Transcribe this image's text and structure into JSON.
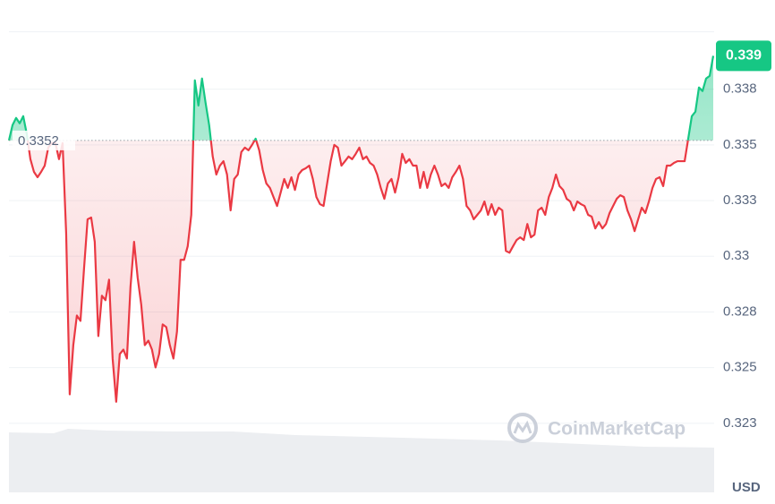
{
  "chart_data": {
    "type": "line",
    "series": [
      {
        "name": null,
        "up_color": "#16c784",
        "down_color": "#ea3943",
        "values": [
          0.3352,
          0.33589,
          0.33621,
          0.33597,
          0.33629,
          0.33548,
          0.33436,
          0.33379,
          0.33355,
          0.33379,
          0.33407,
          0.33488,
          0.33508,
          0.33508,
          0.33436,
          0.33508,
          0.33105,
          0.3238,
          0.32601,
          0.32734,
          0.3271,
          0.32944,
          0.33166,
          0.33174,
          0.33065,
          0.32642,
          0.32823,
          0.32803,
          0.32895,
          0.32541,
          0.32347,
          0.32561,
          0.32581,
          0.32541,
          0.32863,
          0.33065,
          0.32904,
          0.32783,
          0.32601,
          0.32621,
          0.32581,
          0.32501,
          0.32561,
          0.32694,
          0.32682,
          0.32601,
          0.32541,
          0.32662,
          0.32984,
          0.32984,
          0.33045,
          0.33186,
          0.3379,
          0.33677,
          0.33798,
          0.33689,
          0.33589,
          0.33448,
          0.33367,
          0.33407,
          0.33427,
          0.33367,
          0.33206,
          0.33347,
          0.33367,
          0.33468,
          0.33488,
          0.33476,
          0.335,
          0.33528,
          0.33476,
          0.33387,
          0.33327,
          0.33307,
          0.33266,
          0.33226,
          0.33286,
          0.33347,
          0.33307,
          0.33355,
          0.33298,
          0.33367,
          0.33387,
          0.33395,
          0.33407,
          0.33347,
          0.33266,
          0.33234,
          0.33226,
          0.33327,
          0.33427,
          0.335,
          0.33488,
          0.33407,
          0.33427,
          0.33448,
          0.33436,
          0.3346,
          0.33488,
          0.33436,
          0.33448,
          0.33419,
          0.33407,
          0.33367,
          0.33307,
          0.33258,
          0.33327,
          0.33347,
          0.33286,
          0.33355,
          0.3346,
          0.33419,
          0.33436,
          0.33407,
          0.33407,
          0.33307,
          0.33379,
          0.33307,
          0.33367,
          0.33407,
          0.33367,
          0.33315,
          0.33327,
          0.33307,
          0.33355,
          0.33379,
          0.33407,
          0.33347,
          0.33226,
          0.33206,
          0.33166,
          0.33186,
          0.33206,
          0.33246,
          0.33186,
          0.33234,
          0.33186,
          0.33218,
          0.33206,
          0.33024,
          0.33016,
          0.33045,
          0.33073,
          0.33085,
          0.33073,
          0.33145,
          0.33085,
          0.33097,
          0.33206,
          0.33218,
          0.33186,
          0.33266,
          0.33307,
          0.33367,
          0.33315,
          0.33298,
          0.33258,
          0.33246,
          0.33206,
          0.33246,
          0.33234,
          0.33226,
          0.33186,
          0.33178,
          0.33125,
          0.33153,
          0.33125,
          0.33145,
          0.33194,
          0.33226,
          0.33258,
          0.33274,
          0.33266,
          0.33206,
          0.33166,
          0.33113,
          0.33166,
          0.33218,
          0.33194,
          0.33246,
          0.33307,
          0.33347,
          0.33355,
          0.33315,
          0.33407,
          0.33407,
          0.33419,
          0.33427,
          0.33427,
          0.33427,
          0.33528,
          0.33629,
          0.33649,
          0.33758,
          0.33742,
          0.33798,
          0.3381,
          0.339
        ]
      }
    ],
    "baseline": 0.3352,
    "ylim": [
      0.3194,
      0.3401
    ],
    "yticks": [
      {
        "value": 0.3225,
        "label": "0.323"
      },
      0.325,
      {
        "value": 0.3275,
        "label": "0.328"
      },
      0.33,
      {
        "value": 0.3325,
        "label": "0.333"
      },
      0.335,
      {
        "value": 0.3375,
        "label": "0.338"
      }
    ],
    "grid": true,
    "currency": "USD",
    "watermark": "CoinMarketCap"
  }
}
